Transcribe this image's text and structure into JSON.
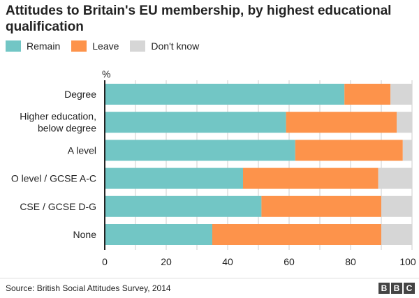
{
  "chart_data": {
    "type": "bar",
    "orientation": "horizontal",
    "stacked": true,
    "title": "Attitudes to Britain's EU membership, by highest educational qualification",
    "unit_label": "%",
    "categories": [
      "Degree",
      "Higher education, below degree",
      "A level",
      "O level / GCSE A-C",
      "CSE / GCSE D-G",
      "None"
    ],
    "category_lines": [
      [
        "Degree"
      ],
      [
        "Higher education,",
        "below degree"
      ],
      [
        "A level"
      ],
      [
        "O level / GCSE A-C"
      ],
      [
        "CSE / GCSE D-G"
      ],
      [
        "None"
      ]
    ],
    "series": [
      {
        "name": "Remain",
        "color": "#72c6c5",
        "values": [
          78,
          59,
          62,
          45,
          51,
          35
        ]
      },
      {
        "name": "Leave",
        "color": "#fd934b",
        "values": [
          15,
          36,
          35,
          44,
          39,
          55
        ]
      },
      {
        "name": "Don't know",
        "color": "#d6d6d6",
        "values": [
          7,
          5,
          3,
          11,
          10,
          10
        ]
      }
    ],
    "xlim": [
      0,
      100
    ],
    "xticks": [
      0,
      20,
      40,
      60,
      80,
      100
    ],
    "grid": true,
    "legend_position": "top-left"
  },
  "footer": {
    "source": "Source: British Social Attitudes Survey, 2014",
    "logo": [
      "B",
      "B",
      "C"
    ]
  }
}
